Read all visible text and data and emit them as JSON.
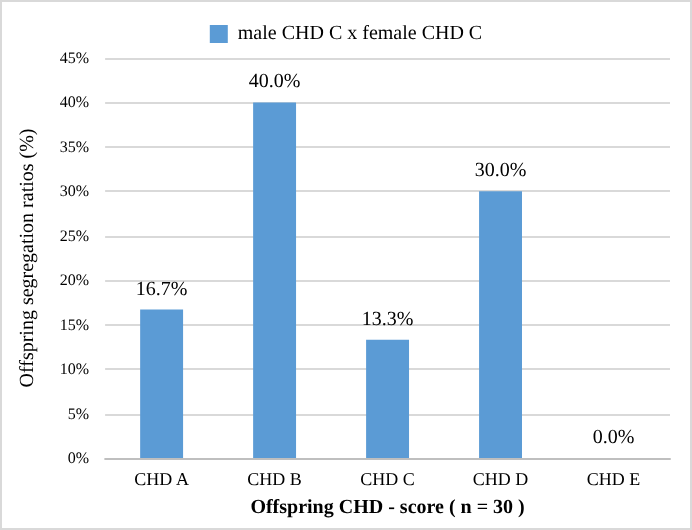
{
  "chart_data": {
    "type": "bar",
    "xlabel": "Offspring CHD - score ( n = 30 )",
    "ylabel": "Offspring segregation ratios (%)",
    "categories": [
      "CHD A",
      "CHD B",
      "CHD C",
      "CHD D",
      "CHD E"
    ],
    "series": [
      {
        "name": "male CHD C x female CHD C",
        "color": "#5b9bd5",
        "values": [
          16.7,
          40.0,
          13.3,
          30.0,
          0.0
        ],
        "value_labels": [
          "16.7%",
          "40.0%",
          "13.3%",
          "30.0%",
          "0.0%"
        ]
      }
    ],
    "ylim": [
      0,
      45
    ],
    "yticks": [
      {
        "value": 0,
        "label": "0%"
      },
      {
        "value": 5,
        "label": "5%"
      },
      {
        "value": 10,
        "label": "10%"
      },
      {
        "value": 15,
        "label": "15%"
      },
      {
        "value": 20,
        "label": "20%"
      },
      {
        "value": 25,
        "label": "25%"
      },
      {
        "value": 30,
        "label": "30%"
      },
      {
        "value": 35,
        "label": "35%"
      },
      {
        "value": 40,
        "label": "40%"
      },
      {
        "value": 45,
        "label": "45%"
      }
    ],
    "grid": true,
    "legend": "top"
  }
}
